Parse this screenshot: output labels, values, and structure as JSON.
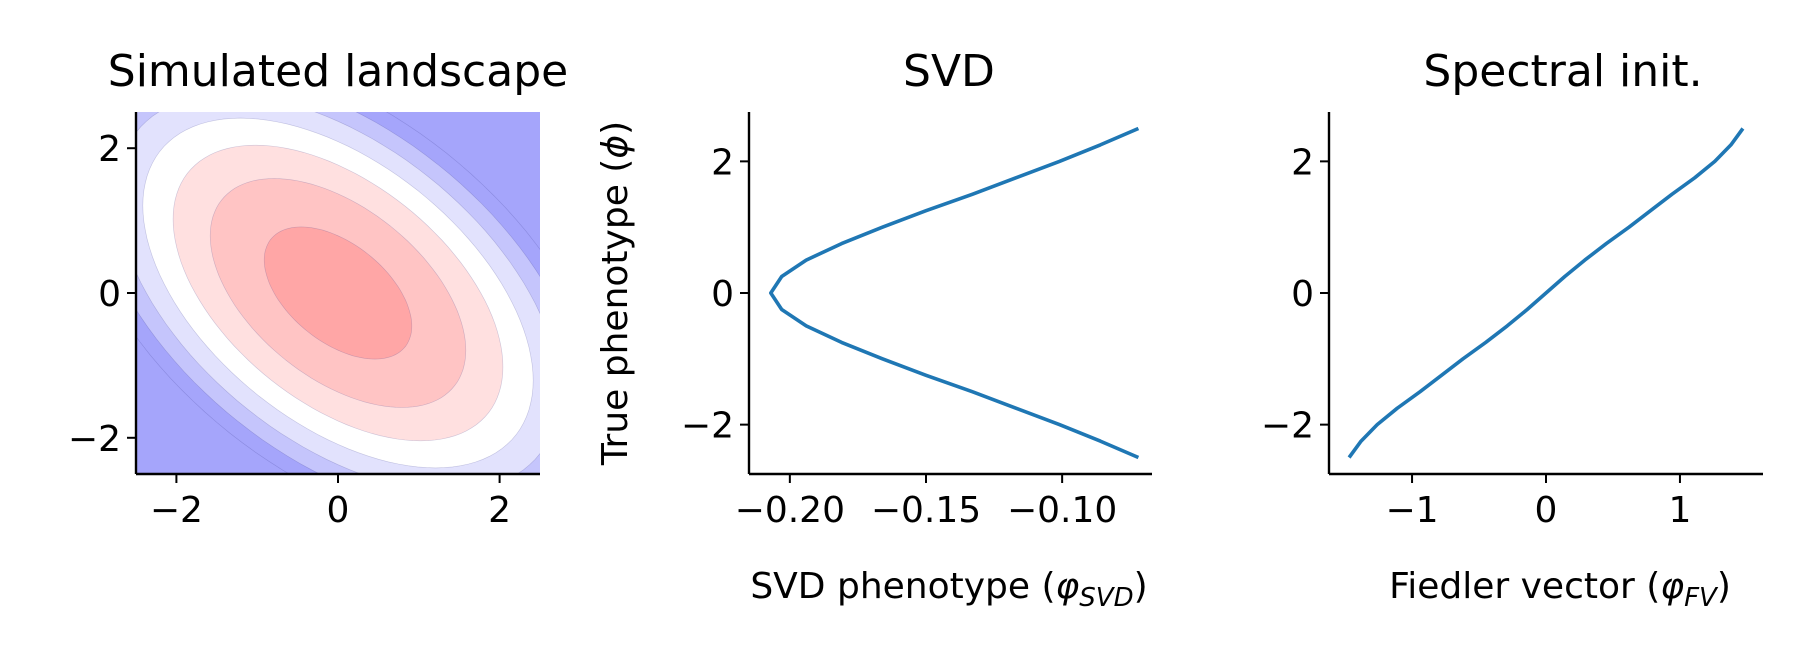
{
  "chart_data": [
    {
      "type": "heatmap",
      "title": "Simulated landscape",
      "xlabel": "",
      "ylabel": "",
      "xlim": [
        -2.5,
        2.5
      ],
      "ylim": [
        -2.5,
        2.5
      ],
      "xticks": [
        "−2",
        "0",
        "2"
      ],
      "yticks": [
        "−2",
        "0",
        "2"
      ],
      "xtick_values": [
        -2,
        0,
        2
      ],
      "ytick_values": [
        -2,
        0,
        2
      ],
      "contour_levels": [
        {
          "level": 1.5,
          "color": "#a5a5fb"
        },
        {
          "level": 2.5,
          "color": "#c5c5fc"
        },
        {
          "level": 3.5,
          "color": "#e2e2fd"
        },
        {
          "level": 4.5,
          "color": "#ffffff"
        },
        {
          "level": 5.5,
          "color": "#ffe0e0"
        },
        {
          "level": 6.5,
          "color": "#ffc4c4"
        },
        {
          "level": 7.5,
          "color": "#ffa6a6"
        }
      ],
      "surface": "peak at (0,0), ellipses elongated along y = -x",
      "grid": false
    },
    {
      "type": "line",
      "title": "SVD",
      "xlabel": "SVD phenotype (",
      "xlabel_symbol": "φ",
      "xlabel_sub": "SVD",
      "xlabel_close": ")",
      "ylabel": "True phenotype (",
      "ylabel_symbol": "ϕ",
      "ylabel_close": ")",
      "xlim": [
        -0.215,
        -0.067
      ],
      "ylim": [
        -2.75,
        2.75
      ],
      "xticks": [
        "−0.20",
        "−0.15",
        "−0.10"
      ],
      "yticks": [
        "−2",
        "0",
        "2"
      ],
      "xtick_values": [
        -0.2,
        -0.15,
        -0.1
      ],
      "ytick_values": [
        -2,
        0,
        2
      ],
      "series": [
        {
          "color": "#1f77b4",
          "x": [
            -0.072,
            -0.086,
            -0.101,
            -0.117,
            -0.133,
            -0.15,
            -0.166,
            -0.181,
            -0.194,
            -0.203,
            -0.207,
            -0.203,
            -0.194,
            -0.181,
            -0.166,
            -0.15,
            -0.133,
            -0.117,
            -0.101,
            -0.086,
            -0.072
          ],
          "y": [
            2.5,
            2.25,
            2.0,
            1.75,
            1.5,
            1.25,
            1.0,
            0.75,
            0.5,
            0.25,
            0.0,
            -0.25,
            -0.5,
            -0.75,
            -1.0,
            -1.25,
            -1.5,
            -1.75,
            -2.0,
            -2.25,
            -2.5
          ]
        }
      ],
      "grid": false
    },
    {
      "type": "line",
      "title": "Spectral init.",
      "xlabel": "Fiedler vector (",
      "xlabel_symbol": "φ",
      "xlabel_sub": "FV",
      "xlabel_close": ")",
      "ylabel": "",
      "xlim": [
        -1.62,
        1.62
      ],
      "ylim": [
        -2.75,
        2.75
      ],
      "xticks": [
        "−1",
        "0",
        "1"
      ],
      "yticks": [
        "−2",
        "0",
        "2"
      ],
      "xtick_values": [
        -1,
        0,
        1
      ],
      "ytick_values": [
        -2,
        0,
        2
      ],
      "series": [
        {
          "color": "#1f77b4",
          "x": [
            -1.47,
            -1.38,
            -1.26,
            -1.11,
            -0.94,
            -0.78,
            -0.62,
            -0.45,
            -0.29,
            -0.14,
            0.0,
            0.14,
            0.29,
            0.45,
            0.62,
            0.78,
            0.94,
            1.11,
            1.26,
            1.38,
            1.47
          ],
          "y": [
            -2.5,
            -2.25,
            -2.0,
            -1.75,
            -1.5,
            -1.25,
            -1.0,
            -0.75,
            -0.5,
            -0.25,
            0.0,
            0.25,
            0.5,
            0.75,
            1.0,
            1.25,
            1.5,
            1.75,
            2.0,
            2.25,
            2.5
          ]
        }
      ],
      "grid": false
    }
  ]
}
